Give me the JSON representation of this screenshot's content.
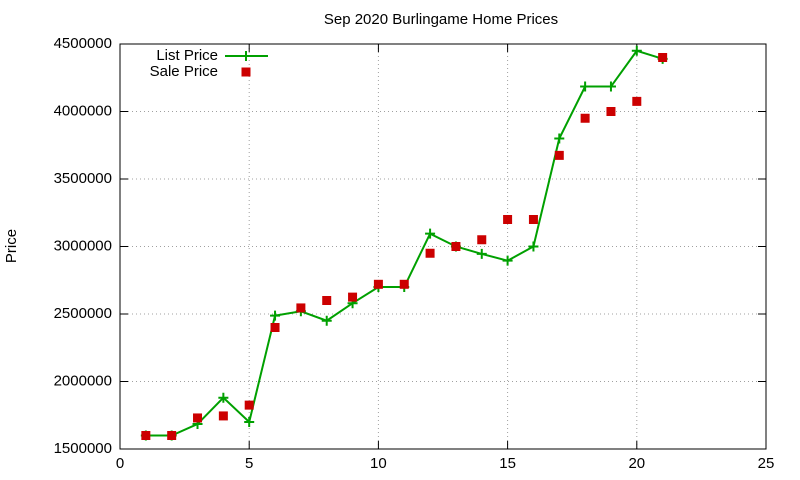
{
  "chart_data": {
    "type": "line",
    "title": "Sep 2020 Burlingame Home Prices",
    "y_label": "Price",
    "x": [
      1,
      2,
      3,
      4,
      5,
      6,
      7,
      8,
      9,
      10,
      11,
      12,
      13,
      14,
      15,
      16,
      17,
      18,
      19,
      20,
      21
    ],
    "series": [
      {
        "name": "List Price",
        "color": "#00a000",
        "mode": "lines+markers",
        "marker": "plus",
        "values": [
          1600000,
          1600000,
          1685000,
          1880000,
          1700000,
          2488000,
          2520000,
          2450000,
          2580000,
          2700000,
          2700000,
          3095000,
          3000000,
          2945000,
          2895000,
          3000000,
          3800000,
          4185000,
          4185000,
          4450000,
          4390000
        ]
      },
      {
        "name": "Sale Price",
        "color": "#cc0000",
        "mode": "markers",
        "marker": "square",
        "values": [
          1600000,
          1600000,
          1730000,
          1745000,
          1825000,
          2400000,
          2545000,
          2600000,
          2625000,
          2720000,
          2720000,
          2950000,
          3000000,
          3050000,
          3200000,
          3200000,
          3675000,
          3950000,
          4000000,
          4075000,
          4400000
        ]
      }
    ],
    "xlim": [
      0,
      25
    ],
    "xticks": [
      0,
      5,
      10,
      15,
      20,
      25
    ],
    "ylim": [
      1500000,
      4500000
    ],
    "yticks": [
      1500000,
      2000000,
      2500000,
      3000000,
      3500000,
      4000000,
      4500000
    ],
    "grid": true,
    "legend": "top-left"
  }
}
